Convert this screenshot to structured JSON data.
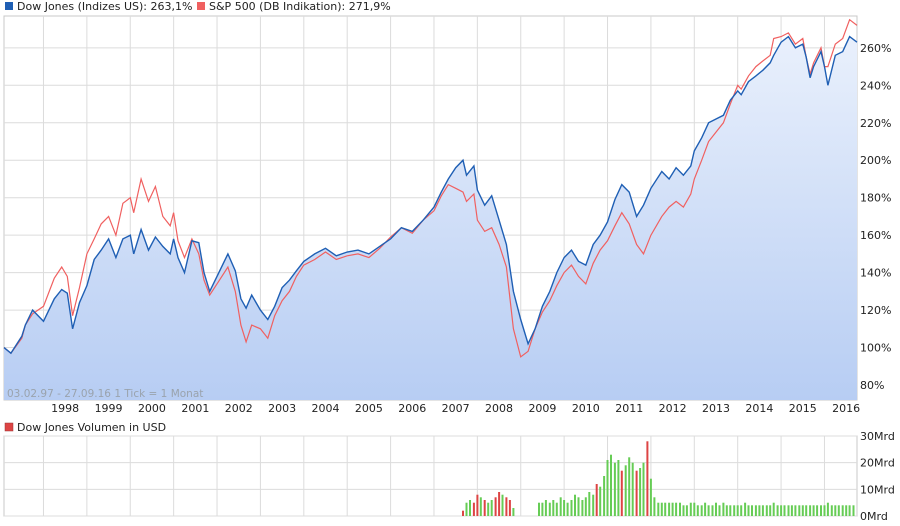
{
  "chart_data": [
    {
      "type": "line",
      "series": [
        {
          "name": "Dow Jones (Indizes US): 263,1%",
          "color": "#1f5fb4",
          "x": [
            1997.09,
            1997.25,
            1997.5,
            1997.58,
            1997.75,
            1998.0,
            1998.25,
            1998.42,
            1998.55,
            1998.67,
            1998.83,
            1999.0,
            1999.17,
            1999.33,
            1999.5,
            1999.67,
            1999.83,
            2000.0,
            2000.08,
            2000.25,
            2000.42,
            2000.58,
            2000.75,
            2000.92,
            2001.0,
            2001.1,
            2001.25,
            2001.42,
            2001.58,
            2001.7,
            2001.83,
            2002.0,
            2002.25,
            2002.42,
            2002.55,
            2002.67,
            2002.8,
            2003.0,
            2003.17,
            2003.33,
            2003.5,
            2003.67,
            2003.83,
            2004.0,
            2004.25,
            2004.5,
            2004.75,
            2005.0,
            2005.25,
            2005.5,
            2005.75,
            2006.0,
            2006.25,
            2006.5,
            2006.75,
            2007.0,
            2007.17,
            2007.33,
            2007.5,
            2007.67,
            2007.75,
            2007.92,
            2008.0,
            2008.17,
            2008.33,
            2008.5,
            2008.67,
            2008.83,
            2009.0,
            2009.17,
            2009.33,
            2009.5,
            2009.67,
            2009.83,
            2010.0,
            2010.17,
            2010.33,
            2010.5,
            2010.67,
            2010.83,
            2011.0,
            2011.17,
            2011.33,
            2011.5,
            2011.67,
            2011.83,
            2012.0,
            2012.25,
            2012.42,
            2012.58,
            2012.75,
            2012.92,
            2013.0,
            2013.17,
            2013.33,
            2013.5,
            2013.67,
            2013.83,
            2014.0,
            2014.08,
            2014.25,
            2014.42,
            2014.58,
            2014.75,
            2014.83,
            2015.0,
            2015.17,
            2015.33,
            2015.5,
            2015.58,
            2015.67,
            2015.75,
            2015.92,
            2016.0,
            2016.08,
            2016.25,
            2016.42,
            2016.58,
            2016.75
          ],
          "y": [
            100,
            97,
            106,
            112,
            120,
            114,
            126,
            131,
            129,
            110,
            124,
            133,
            147,
            152,
            158,
            148,
            158,
            160,
            150,
            163,
            152,
            159,
            154,
            150,
            158,
            148,
            140,
            157,
            156,
            140,
            130,
            138,
            150,
            141,
            126,
            121,
            128,
            120,
            115,
            122,
            132,
            136,
            141,
            146,
            150,
            153,
            149,
            151,
            152,
            150,
            154,
            158,
            164,
            162,
            168,
            175,
            183,
            190,
            196,
            200,
            192,
            197,
            184,
            176,
            181,
            168,
            155,
            130,
            115,
            102,
            110,
            122,
            130,
            140,
            148,
            152,
            146,
            144,
            155,
            160,
            167,
            179,
            187,
            183,
            170,
            176,
            185,
            194,
            190,
            196,
            192,
            197,
            205,
            212,
            220,
            222,
            224,
            232,
            237,
            235,
            242,
            245,
            248,
            252,
            256,
            263,
            266,
            260,
            262,
            255,
            244,
            250,
            258,
            250,
            240,
            256,
            258,
            266,
            263
          ]
        },
        {
          "name": "S&P 500 (DB Indikation): 271,9%",
          "color": "#f06060",
          "x": [
            1997.09,
            1997.25,
            1997.5,
            1997.58,
            1997.75,
            1998.0,
            1998.25,
            1998.42,
            1998.55,
            1998.67,
            1998.83,
            1999.0,
            1999.17,
            1999.33,
            1999.5,
            1999.67,
            1999.83,
            2000.0,
            2000.08,
            2000.25,
            2000.42,
            2000.58,
            2000.75,
            2000.92,
            2001.0,
            2001.1,
            2001.25,
            2001.42,
            2001.58,
            2001.7,
            2001.83,
            2002.0,
            2002.25,
            2002.42,
            2002.55,
            2002.67,
            2002.8,
            2003.0,
            2003.17,
            2003.33,
            2003.5,
            2003.67,
            2003.83,
            2004.0,
            2004.25,
            2004.5,
            2004.75,
            2005.0,
            2005.25,
            2005.5,
            2005.75,
            2006.0,
            2006.25,
            2006.5,
            2006.75,
            2007.0,
            2007.17,
            2007.33,
            2007.5,
            2007.67,
            2007.75,
            2007.92,
            2008.0,
            2008.17,
            2008.33,
            2008.5,
            2008.67,
            2008.83,
            2009.0,
            2009.17,
            2009.33,
            2009.5,
            2009.67,
            2009.83,
            2010.0,
            2010.17,
            2010.33,
            2010.5,
            2010.67,
            2010.83,
            2011.0,
            2011.17,
            2011.33,
            2011.5,
            2011.67,
            2011.83,
            2012.0,
            2012.25,
            2012.42,
            2012.58,
            2012.75,
            2012.92,
            2013.0,
            2013.17,
            2013.33,
            2013.5,
            2013.67,
            2013.83,
            2014.0,
            2014.08,
            2014.25,
            2014.42,
            2014.58,
            2014.75,
            2014.83,
            2015.0,
            2015.17,
            2015.33,
            2015.5,
            2015.58,
            2015.67,
            2015.75,
            2015.92,
            2016.0,
            2016.08,
            2016.25,
            2016.42,
            2016.58,
            2016.75
          ],
          "y": [
            100,
            97,
            105,
            112,
            118,
            122,
            137,
            143,
            138,
            117,
            132,
            150,
            158,
            166,
            170,
            160,
            177,
            180,
            172,
            190,
            178,
            186,
            170,
            165,
            172,
            157,
            148,
            158,
            150,
            136,
            128,
            134,
            143,
            130,
            112,
            103,
            112,
            110,
            105,
            117,
            125,
            130,
            138,
            144,
            147,
            151,
            147,
            149,
            150,
            148,
            153,
            159,
            164,
            161,
            168,
            173,
            181,
            187,
            185,
            183,
            178,
            182,
            168,
            162,
            164,
            155,
            143,
            110,
            95,
            98,
            110,
            119,
            125,
            133,
            140,
            144,
            138,
            134,
            145,
            152,
            157,
            165,
            172,
            166,
            155,
            150,
            160,
            170,
            175,
            178,
            175,
            182,
            190,
            200,
            210,
            215,
            220,
            230,
            240,
            238,
            245,
            250,
            253,
            256,
            265,
            266,
            268,
            262,
            265,
            255,
            246,
            252,
            260,
            250,
            250,
            262,
            265,
            275,
            272
          ]
        }
      ],
      "ylim": [
        72,
        277
      ],
      "xlim": [
        1997.09,
        2016.75
      ],
      "ytick_values": [
        80,
        100,
        120,
        140,
        160,
        180,
        200,
        220,
        240,
        260
      ],
      "ytick_labels": [
        "80%",
        "100%",
        "120%",
        "140%",
        "160%",
        "180%",
        "200%",
        "220%",
        "240%",
        "260%"
      ],
      "xtick_values": [
        1998,
        1999,
        2000,
        2001,
        2002,
        2003,
        2004,
        2005,
        2006,
        2007,
        2008,
        2009,
        2010,
        2011,
        2012,
        2013,
        2014,
        2015,
        2016
      ],
      "xtick_labels": [
        "1998",
        "1999",
        "2000",
        "2001",
        "2002",
        "2003",
        "2004",
        "2005",
        "2006",
        "2007",
        "2008",
        "2009",
        "2010",
        "2011",
        "2012",
        "2013",
        "2014",
        "2015",
        "2016"
      ],
      "grid": true,
      "legend": "top-left",
      "note": "03.02.97 - 27.09.16 1 Tick = 1 Monat"
    },
    {
      "type": "bar",
      "series": [
        {
          "name": "Dow Jones Volumen in USD",
          "x": [
            2007.67,
            2007.75,
            2007.83,
            2007.92,
            2008.0,
            2008.08,
            2008.17,
            2008.25,
            2008.33,
            2008.42,
            2008.5,
            2008.58,
            2008.67,
            2008.75,
            2008.83,
            2009.42,
            2009.5,
            2009.58,
            2009.67,
            2009.75,
            2009.83,
            2009.92,
            2010.0,
            2010.08,
            2010.17,
            2010.25,
            2010.33,
            2010.42,
            2010.5,
            2010.58,
            2010.67,
            2010.75,
            2010.83,
            2010.92,
            2011.0,
            2011.08,
            2011.17,
            2011.25,
            2011.33,
            2011.42,
            2011.5,
            2011.58,
            2011.67,
            2011.75,
            2011.83,
            2011.92,
            2012.0,
            2012.08,
            2012.17,
            2012.25,
            2012.33,
            2012.42,
            2012.5,
            2012.58,
            2012.67,
            2012.75,
            2012.83,
            2012.92,
            2013.0,
            2013.08,
            2013.17,
            2013.25,
            2013.33,
            2013.42,
            2013.5,
            2013.58,
            2013.67,
            2013.75,
            2013.83,
            2013.92,
            2014.0,
            2014.08,
            2014.17,
            2014.25,
            2014.33,
            2014.42,
            2014.5,
            2014.58,
            2014.67,
            2014.75,
            2014.83,
            2014.92,
            2015.0,
            2015.08,
            2015.17,
            2015.25,
            2015.33,
            2015.42,
            2015.5,
            2015.58,
            2015.67,
            2015.75,
            2015.83,
            2015.92,
            2016.0,
            2016.08,
            2016.17,
            2016.25,
            2016.33,
            2016.42,
            2016.5,
            2016.58,
            2016.67
          ],
          "values": [
            2,
            5,
            6,
            5,
            8,
            7,
            6,
            5,
            6,
            7,
            9,
            8,
            7,
            6,
            3,
            5,
            5,
            6,
            5,
            6,
            5,
            7,
            6,
            5,
            6,
            8,
            7,
            6,
            7,
            9,
            8,
            12,
            11,
            15,
            21,
            23,
            20,
            21,
            17,
            19,
            22,
            20,
            17,
            18,
            20,
            28,
            14,
            7,
            5,
            5,
            5,
            5,
            5,
            5,
            5,
            4,
            4,
            5,
            5,
            4,
            4,
            5,
            4,
            4,
            5,
            4,
            5,
            4,
            4,
            4,
            4,
            4,
            5,
            4,
            4,
            4,
            4,
            4,
            4,
            4,
            5,
            4,
            4,
            4,
            4,
            4,
            4,
            4,
            4,
            4,
            4,
            4,
            4,
            4,
            4,
            5,
            4,
            4,
            4,
            4,
            4,
            4,
            4
          ],
          "up": [
            false,
            true,
            true,
            false,
            false,
            true,
            false,
            true,
            true,
            false,
            false,
            true,
            false,
            false,
            true,
            true,
            true,
            true,
            true,
            true,
            true,
            true,
            true,
            true,
            true,
            true,
            true,
            true,
            true,
            true,
            true,
            false,
            true,
            true,
            true,
            true,
            true,
            true,
            false,
            true,
            true,
            true,
            false,
            true,
            true,
            false,
            true,
            true,
            true,
            true,
            true,
            true,
            true,
            true,
            true,
            true,
            true,
            true,
            true,
            true,
            true,
            true,
            true,
            true,
            true,
            true,
            true,
            true,
            true,
            true,
            true,
            true,
            true,
            true,
            true,
            true,
            true,
            true,
            true,
            true,
            true,
            true,
            true,
            true,
            true,
            true,
            true,
            true,
            true,
            true,
            true,
            true,
            true,
            true,
            true,
            true,
            true,
            true,
            true,
            true,
            true,
            true,
            true
          ]
        }
      ],
      "ylim": [
        0,
        30
      ],
      "xlim": [
        1997.09,
        2016.75
      ],
      "ytick_values": [
        0,
        10,
        20,
        30
      ],
      "ytick_labels": [
        "0Mrd",
        "10Mrd",
        "20Mrd",
        "30Mrd"
      ],
      "up_color": "#66cc55",
      "down_color": "#dd4444",
      "grid": true,
      "legend": "top-left"
    }
  ]
}
